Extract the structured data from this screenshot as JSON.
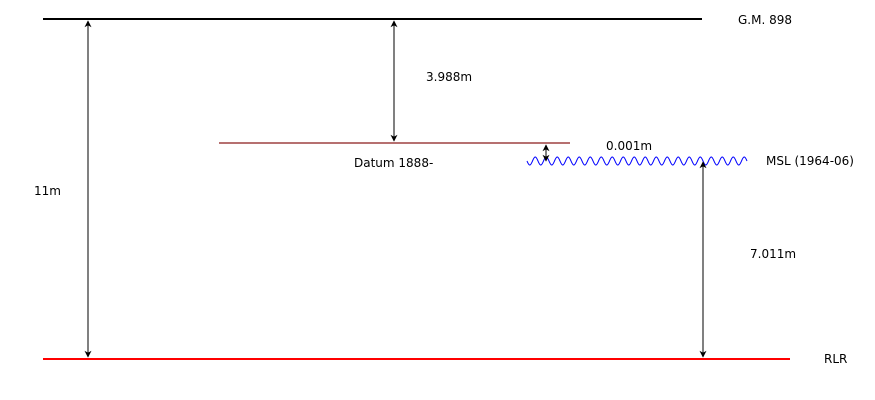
{
  "labels": {
    "gm": "G.M. 898",
    "msl": "MSL (1964-06)",
    "rlr": "RLR",
    "datum": "Datum 1888-"
  },
  "measurements": {
    "total": "11m",
    "gm_to_datum": "3.988m",
    "datum_to_msl": "0.001m",
    "msl_to_rlr": "7.011m"
  },
  "colors": {
    "gm_line": "#000000",
    "datum_line": "#8b1a1a",
    "msl_wave": "#0000ff",
    "rlr_line": "#ff0000",
    "arrows": "#000000"
  }
}
